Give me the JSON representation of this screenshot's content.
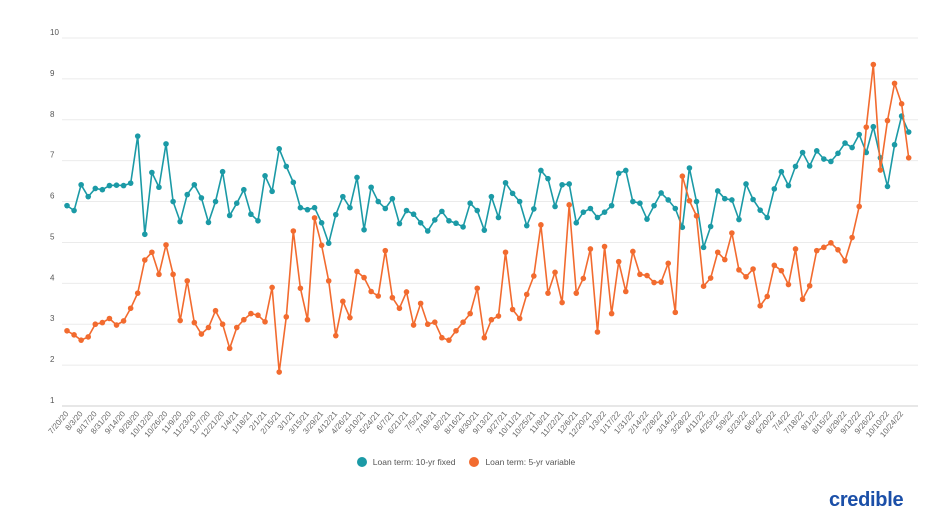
{
  "chart_data": {
    "type": "line",
    "title": "",
    "xlabel": "",
    "ylabel": "",
    "ylim": [
      1,
      10
    ],
    "y_ticks": [
      "1",
      "2",
      "3",
      "4",
      "5",
      "6",
      "7",
      "8",
      "9",
      "10"
    ],
    "grid": true,
    "legend_position": "bottom",
    "x_frequency": "weekly",
    "x_tick_labels": [
      "7/20/20",
      "8/3/20",
      "8/17/20",
      "8/31/20",
      "9/14/20",
      "9/28/20",
      "10/12/20",
      "10/26/20",
      "11/9/20",
      "11/23/20",
      "12/7/20",
      "12/21/20",
      "1/4/21",
      "1/18/21",
      "2/1/21",
      "2/15/21",
      "3/1/21",
      "3/15/21",
      "3/29/21",
      "4/12/21",
      "4/26/21",
      "5/10/21",
      "5/24/21",
      "6/7/21",
      "6/21/21",
      "7/5/21",
      "7/19/21",
      "8/2/21",
      "8/16/21",
      "8/30/21",
      "9/13/21",
      "9/27/21",
      "10/11/21",
      "10/25/21",
      "11/8/21",
      "11/22/21",
      "12/6/21",
      "12/20/21",
      "1/3/22",
      "1/17/22",
      "1/31/22",
      "2/14/22",
      "2/28/22",
      "3/14/22",
      "3/28/22",
      "4/11/22",
      "4/25/22",
      "5/9/22",
      "5/23/22",
      "6/6/22",
      "6/20/22",
      "7/4/22",
      "7/18/22",
      "8/1/22",
      "8/15/22",
      "8/29/22",
      "9/12/22",
      "9/26/22",
      "10/10/22",
      "10/24/22"
    ],
    "series": [
      {
        "name": "Loan term: 10-yr fixed",
        "color": "#1b9aa6",
        "values": [
          5.9,
          5.78,
          6.41,
          6.12,
          6.32,
          6.29,
          6.39,
          6.4,
          6.39,
          6.45,
          7.6,
          5.2,
          6.71,
          6.35,
          7.41,
          6.0,
          5.51,
          6.17,
          6.41,
          6.09,
          5.49,
          6.0,
          6.73,
          5.66,
          5.96,
          6.29,
          5.69,
          5.53,
          6.63,
          6.25,
          7.29,
          6.86,
          6.47,
          5.85,
          5.8,
          5.85,
          5.48,
          4.98,
          5.68,
          6.12,
          5.85,
          6.59,
          5.31,
          6.35,
          6.0,
          5.83,
          6.07,
          5.46,
          5.78,
          5.69,
          5.48,
          5.28,
          5.55,
          5.76,
          5.53,
          5.47,
          5.38,
          5.96,
          5.78,
          5.3,
          6.12,
          5.61,
          6.46,
          6.2,
          6.0,
          5.41,
          5.82,
          6.76,
          6.56,
          5.88,
          6.41,
          6.43,
          5.48,
          5.74,
          5.83,
          5.61,
          5.74,
          5.9,
          6.69,
          6.76,
          6.0,
          5.96,
          5.57,
          5.9,
          6.21,
          6.04,
          5.83,
          5.37,
          6.82,
          6.0,
          4.88,
          5.39,
          6.26,
          6.07,
          6.04,
          5.56,
          6.43,
          6.05,
          5.79,
          5.61,
          6.31,
          6.73,
          6.39,
          6.86,
          7.2,
          6.87,
          7.24,
          7.04,
          6.98,
          7.18,
          7.43,
          7.32,
          7.64,
          7.2,
          7.83,
          7.07,
          6.37,
          7.39,
          8.09,
          7.7
        ]
      },
      {
        "name": "Loan term: 5-yr variable",
        "color": "#f26b2f",
        "values": [
          2.84,
          2.74,
          2.61,
          2.69,
          3.0,
          3.04,
          3.14,
          2.98,
          3.08,
          3.39,
          3.76,
          4.57,
          4.76,
          4.22,
          4.94,
          4.22,
          3.09,
          4.06,
          3.04,
          2.76,
          2.92,
          3.33,
          3.0,
          2.41,
          2.92,
          3.11,
          3.26,
          3.22,
          3.06,
          3.9,
          1.83,
          3.18,
          5.28,
          3.88,
          3.11,
          5.6,
          4.93,
          4.06,
          2.72,
          3.56,
          3.16,
          4.29,
          4.14,
          3.8,
          3.69,
          4.8,
          3.65,
          3.39,
          3.79,
          2.98,
          3.51,
          3.0,
          3.05,
          2.67,
          2.61,
          2.84,
          3.05,
          3.26,
          3.88,
          2.67,
          3.11,
          3.2,
          4.76,
          3.36,
          3.14,
          3.73,
          4.18,
          5.43,
          3.76,
          4.27,
          3.53,
          5.92,
          3.76,
          4.12,
          4.84,
          2.81,
          4.9,
          3.26,
          4.53,
          3.8,
          4.78,
          4.22,
          4.19,
          4.02,
          4.03,
          4.49,
          3.29,
          6.62,
          6.02,
          5.65,
          3.93,
          4.13,
          4.76,
          4.58,
          5.23,
          4.33,
          4.16,
          4.35,
          3.45,
          3.68,
          4.44,
          4.31,
          3.97,
          4.84,
          3.61,
          3.94,
          4.8,
          4.88,
          4.99,
          4.82,
          4.55,
          5.12,
          5.88,
          7.82,
          9.35,
          6.77,
          7.98,
          8.89,
          8.39,
          7.07
        ]
      }
    ]
  },
  "brand": {
    "logo_text": "credible",
    "color": "#1b4fa8"
  }
}
